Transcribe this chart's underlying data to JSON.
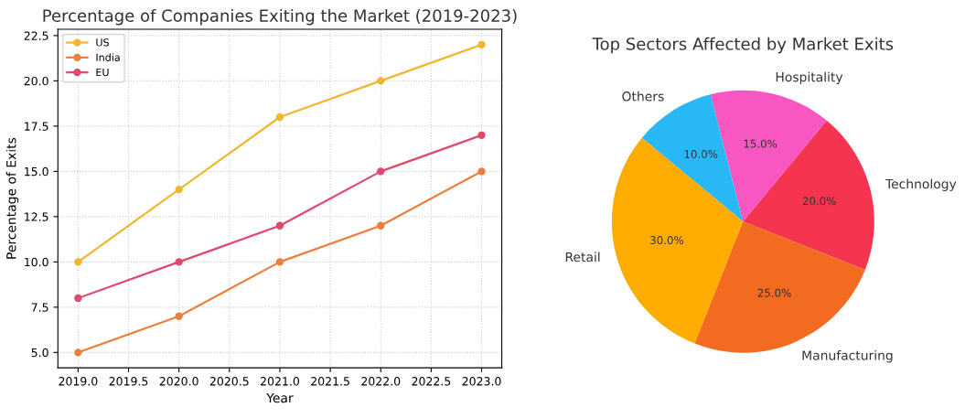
{
  "chart_data": [
    {
      "type": "line",
      "title": "Percentage of Companies Exiting the Market (2019-2023)",
      "xlabel": "Year",
      "ylabel": "Percentage of Exits",
      "x": [
        2019,
        2020,
        2021,
        2022,
        2023
      ],
      "series": [
        {
          "name": "US",
          "color": "#f0b72f",
          "values": [
            10,
            14,
            18,
            20,
            22
          ]
        },
        {
          "name": "India",
          "color": "#ec7f3c",
          "values": [
            5,
            7,
            10,
            12,
            15
          ]
        },
        {
          "name": "EU",
          "color": "#e0486c",
          "values": [
            8,
            10,
            12,
            15,
            17
          ]
        }
      ],
      "xlim": [
        2018.8,
        2023.2
      ],
      "xticks": [
        {
          "value": 2019,
          "label": "2019.0"
        },
        {
          "value": 2019.5,
          "label": "2019.5"
        },
        {
          "value": 2020,
          "label": "2020.0"
        },
        {
          "value": 2020.5,
          "label": "2020.5"
        },
        {
          "value": 2021,
          "label": "2021.0"
        },
        {
          "value": 2021.5,
          "label": "2021.5"
        },
        {
          "value": 2022,
          "label": "2022.0"
        },
        {
          "value": 2022.5,
          "label": "2022.5"
        },
        {
          "value": 2023,
          "label": "2023.0"
        }
      ],
      "ylim": [
        4.15,
        22.85
      ],
      "yticks": [
        {
          "value": 5,
          "label": "5.0"
        },
        7.5,
        {
          "value": 10,
          "label": "10.0"
        },
        12.5,
        {
          "value": 15,
          "label": "15.0"
        },
        17.5,
        {
          "value": 20,
          "label": "20.0"
        },
        22.5
      ],
      "grid": true,
      "legend": "top left",
      "marker": "circle",
      "line_style": "solid"
    },
    {
      "type": "pie",
      "title": "Top Sectors Affected by Market Exits",
      "categories": [
        "Technology",
        "Hospitality",
        "Others",
        "Retail",
        "Manufacturing"
      ],
      "values": [
        20,
        15,
        10,
        30,
        25
      ],
      "colors": [
        "#f5344f",
        "#f857c1",
        "#29b8f6",
        "#ffac00",
        "#f26b21"
      ],
      "value_labels": [
        "20.0%",
        "15.0%",
        "10.0%",
        "30.0%",
        "25.0%"
      ]
    }
  ]
}
